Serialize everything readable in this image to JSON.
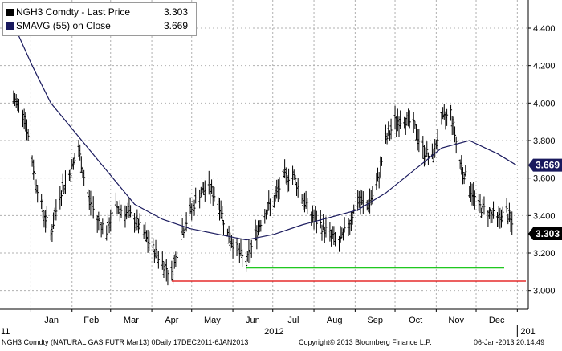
{
  "legend": {
    "price_label": "NGH3 Comdty  - Last Price",
    "price_value": "3.303",
    "price_color": "#000000",
    "sma_label": "SMAVG (55)  on Close",
    "sma_value": "3.669",
    "sma_color": "#1a1a5e"
  },
  "footer": {
    "left": "NGH3 Comdty (NATURAL GAS FUTR  Mar13) 0Daily 17DEC2011-6JAN2013",
    "center": "Copyright© 2013 Bloomberg Finance L.P.",
    "right": "06-Jan-2013 20:14:49"
  },
  "chart_data": {
    "type": "line",
    "y_ticks": [
      "3.000",
      "3.200",
      "3.400",
      "3.600",
      "3.800",
      "4.000",
      "4.200",
      "4.400"
    ],
    "ylim": [
      2.9,
      4.55
    ],
    "x_month_labels": [
      "Jan",
      "Feb",
      "Mar",
      "Apr",
      "May",
      "Jun",
      "Jul",
      "Aug",
      "Sep",
      "Oct",
      "Nov",
      "Dec"
    ],
    "x_year_labels": [
      "11",
      "2012",
      "201"
    ],
    "last_price_tag": "3.303",
    "sma_tag": "3.669",
    "support_level": 3.12,
    "support_color": "#00c000",
    "low_level": 3.05,
    "low_color": "#e00000",
    "price_bar_color": "#000000",
    "sma_color": "#1a1a5e",
    "series": [
      {
        "name": "NGH3 Comdty  - Last Price",
        "x": [
          "2011-12-19",
          "2011-12-27",
          "2012-01-03",
          "2012-01-09",
          "2012-01-16",
          "2012-01-23",
          "2012-01-30",
          "2012-02-06",
          "2012-02-13",
          "2012-02-20",
          "2012-02-27",
          "2012-03-05",
          "2012-03-12",
          "2012-03-19",
          "2012-03-26",
          "2012-04-02",
          "2012-04-09",
          "2012-04-16",
          "2012-04-23",
          "2012-04-30",
          "2012-05-07",
          "2012-05-14",
          "2012-05-21",
          "2012-05-28",
          "2012-06-04",
          "2012-06-11",
          "2012-06-18",
          "2012-06-25",
          "2012-07-02",
          "2012-07-09",
          "2012-07-16",
          "2012-07-23",
          "2012-07-30",
          "2012-08-06",
          "2012-08-13",
          "2012-08-20",
          "2012-08-27",
          "2012-09-03",
          "2012-09-10",
          "2012-09-17",
          "2012-09-24",
          "2012-10-01",
          "2012-10-08",
          "2012-10-15",
          "2012-10-22",
          "2012-10-29",
          "2012-11-05",
          "2012-11-12",
          "2012-11-19",
          "2012-11-26",
          "2012-12-03",
          "2012-12-10",
          "2012-12-17",
          "2012-12-24",
          "2012-12-31"
        ],
        "values": [
          4.02,
          3.95,
          3.65,
          3.45,
          3.3,
          3.52,
          3.62,
          3.75,
          3.5,
          3.38,
          3.32,
          3.45,
          3.42,
          3.38,
          3.3,
          3.22,
          3.15,
          3.08,
          3.3,
          3.42,
          3.52,
          3.55,
          3.48,
          3.3,
          3.22,
          3.14,
          3.3,
          3.42,
          3.48,
          3.6,
          3.62,
          3.5,
          3.4,
          3.35,
          3.3,
          3.25,
          3.35,
          3.48,
          3.45,
          3.55,
          3.8,
          3.9,
          3.92,
          3.88,
          3.75,
          3.7,
          3.9,
          3.95,
          3.68,
          3.55,
          3.45,
          3.42,
          3.38,
          3.42,
          3.3
        ]
      },
      {
        "name": "SMAVG (55)  on Close",
        "x": [
          "2011-12-19",
          "2012-01-02",
          "2012-01-16",
          "2012-02-06",
          "2012-02-27",
          "2012-03-19",
          "2012-04-09",
          "2012-04-30",
          "2012-05-21",
          "2012-06-11",
          "2012-07-02",
          "2012-07-23",
          "2012-08-13",
          "2012-09-03",
          "2012-09-24",
          "2012-10-15",
          "2012-11-05",
          "2012-11-26",
          "2012-12-17",
          "2012-12-31"
        ],
        "values": [
          4.42,
          4.2,
          4.0,
          3.82,
          3.64,
          3.46,
          3.38,
          3.33,
          3.3,
          3.27,
          3.3,
          3.35,
          3.39,
          3.43,
          3.52,
          3.64,
          3.76,
          3.8,
          3.73,
          3.67
        ]
      }
    ]
  }
}
